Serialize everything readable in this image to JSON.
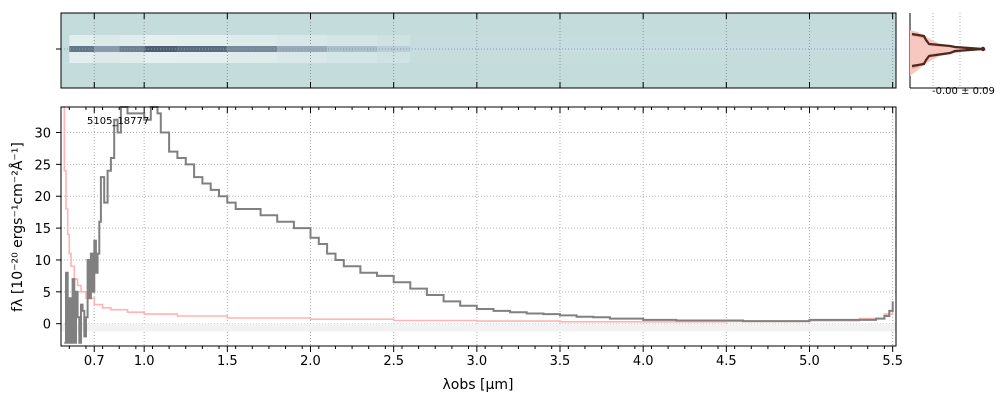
{
  "chart_data": [
    {
      "type": "heatmap",
      "panel": "2d-spectrum",
      "description_values": "2D spectrum: strong trace from 0.6 to ~2.4 um, faint continuation beyond",
      "x_range_um": [
        0.5,
        5.5
      ],
      "trace_intensity": [
        {
          "x": 0.55,
          "v": 0.9
        },
        {
          "x": 0.7,
          "v": 0.7
        },
        {
          "x": 0.85,
          "v": 0.85
        },
        {
          "x": 1.0,
          "v": 1.0
        },
        {
          "x": 1.2,
          "v": 0.95
        },
        {
          "x": 1.5,
          "v": 0.8
        },
        {
          "x": 1.8,
          "v": 0.6
        },
        {
          "x": 2.1,
          "v": 0.45
        },
        {
          "x": 2.4,
          "v": 0.3
        },
        {
          "x": 2.6,
          "v": 0.08
        },
        {
          "x": 3.5,
          "v": 0.05
        },
        {
          "x": 4.5,
          "v": 0.04
        },
        {
          "x": 5.5,
          "v": 0.04
        }
      ]
    },
    {
      "type": "line",
      "panel": "profile",
      "annotation": "-0.00 ± 0.09"
    },
    {
      "type": "line",
      "panel": "1d-spectrum",
      "title": "5105_18777",
      "xlabel": "λobs [μm]",
      "ylabel": "fλ [10⁻²⁰ ergs⁻¹cm⁻²Å⁻¹]",
      "xlim": [
        0.5,
        5.52
      ],
      "ylim": [
        -3.5,
        34
      ],
      "x_ticks": [
        0.7,
        1.0,
        1.5,
        2.0,
        2.5,
        3.0,
        3.5,
        4.0,
        4.5,
        5.0,
        5.5
      ],
      "x_tick_labels": [
        "0.7",
        "1.0",
        "1.5",
        "2.0",
        "2.5",
        "3.0",
        "3.5",
        "4.0",
        "4.5",
        "5.0",
        "5.5"
      ],
      "y_ticks": [
        0,
        5,
        10,
        15,
        20,
        25,
        30
      ],
      "y_tick_labels": [
        "0",
        "5",
        "10",
        "15",
        "20",
        "25",
        "30"
      ],
      "grid": true,
      "series": [
        {
          "role": "flux",
          "color": "#808080",
          "points": [
            [
              0.52,
              -3
            ],
            [
              0.53,
              8
            ],
            [
              0.54,
              -3
            ],
            [
              0.55,
              4
            ],
            [
              0.56,
              -3
            ],
            [
              0.57,
              7
            ],
            [
              0.58,
              -3
            ],
            [
              0.59,
              5
            ],
            [
              0.6,
              1
            ],
            [
              0.61,
              -3
            ],
            [
              0.62,
              3
            ],
            [
              0.63,
              2
            ],
            [
              0.64,
              -2
            ],
            [
              0.65,
              1
            ],
            [
              0.66,
              10
            ],
            [
              0.67,
              4
            ],
            [
              0.68,
              11
            ],
            [
              0.69,
              5
            ],
            [
              0.7,
              13
            ],
            [
              0.71,
              8
            ],
            [
              0.72,
              11
            ],
            [
              0.73,
              16
            ],
            [
              0.74,
              23
            ],
            [
              0.76,
              19
            ],
            [
              0.78,
              24
            ],
            [
              0.8,
              26
            ],
            [
              0.82,
              32
            ],
            [
              0.84,
              30
            ],
            [
              0.86,
              34
            ],
            [
              0.88,
              34
            ],
            [
              0.9,
              33
            ],
            [
              0.93,
              33
            ],
            [
              0.96,
              33
            ],
            [
              1.0,
              32
            ],
            [
              1.04,
              34
            ],
            [
              1.08,
              33
            ],
            [
              1.1,
              30
            ],
            [
              1.15,
              27
            ],
            [
              1.2,
              26
            ],
            [
              1.25,
              25
            ],
            [
              1.3,
              23
            ],
            [
              1.35,
              22
            ],
            [
              1.4,
              21
            ],
            [
              1.45,
              20
            ],
            [
              1.5,
              19
            ],
            [
              1.55,
              18
            ],
            [
              1.6,
              18
            ],
            [
              1.7,
              17
            ],
            [
              1.8,
              16
            ],
            [
              1.9,
              15
            ],
            [
              2.0,
              13.5
            ],
            [
              2.05,
              12.5
            ],
            [
              2.1,
              11
            ],
            [
              2.15,
              10
            ],
            [
              2.2,
              9
            ],
            [
              2.3,
              8
            ],
            [
              2.4,
              7.5
            ],
            [
              2.5,
              6.5
            ],
            [
              2.6,
              5.5
            ],
            [
              2.7,
              4.5
            ],
            [
              2.8,
              3.5
            ],
            [
              2.9,
              2.8
            ],
            [
              3.0,
              2.3
            ],
            [
              3.1,
              2
            ],
            [
              3.2,
              1.8
            ],
            [
              3.3,
              1.6
            ],
            [
              3.4,
              1.5
            ],
            [
              3.5,
              1.3
            ],
            [
              3.6,
              1.1
            ],
            [
              3.7,
              1.0
            ],
            [
              3.8,
              0.8
            ],
            [
              3.9,
              0.8
            ],
            [
              4.0,
              0.6
            ],
            [
              4.2,
              0.5
            ],
            [
              4.4,
              0.5
            ],
            [
              4.6,
              0.4
            ],
            [
              4.8,
              0.4
            ],
            [
              5.0,
              0.6
            ],
            [
              5.2,
              0.6
            ],
            [
              5.4,
              0.8
            ],
            [
              5.45,
              1.2
            ],
            [
              5.48,
              2
            ],
            [
              5.5,
              3.5
            ]
          ]
        },
        {
          "role": "error",
          "color": "#ffb3b3",
          "points": [
            [
              0.51,
              34
            ],
            [
              0.52,
              24
            ],
            [
              0.53,
              18
            ],
            [
              0.54,
              14
            ],
            [
              0.55,
              11
            ],
            [
              0.56,
              9
            ],
            [
              0.58,
              7
            ],
            [
              0.6,
              6
            ],
            [
              0.62,
              5
            ],
            [
              0.65,
              4
            ],
            [
              0.7,
              3
            ],
            [
              0.75,
              2.5
            ],
            [
              0.8,
              2.2
            ],
            [
              0.9,
              1.8
            ],
            [
              1.0,
              1.5
            ],
            [
              1.2,
              1.2
            ],
            [
              1.5,
              0.9
            ],
            [
              2.0,
              0.7
            ],
            [
              2.5,
              0.5
            ],
            [
              3.0,
              0.4
            ],
            [
              3.5,
              0.3
            ],
            [
              4.0,
              0.3
            ],
            [
              4.5,
              0.35
            ],
            [
              5.0,
              0.45
            ],
            [
              5.3,
              0.8
            ],
            [
              5.45,
              1.5
            ],
            [
              5.5,
              3.5
            ]
          ]
        }
      ]
    }
  ]
}
